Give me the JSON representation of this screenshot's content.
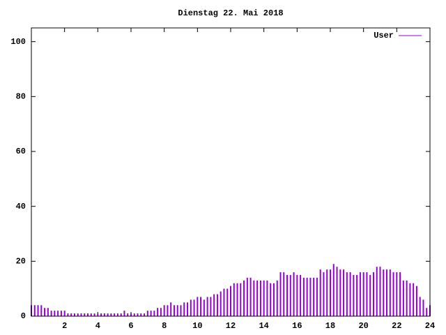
{
  "chart_data": {
    "type": "impulse",
    "title": "Dienstag 22. Mai 2018",
    "series": [
      {
        "name": "User",
        "color": "#9400d3",
        "x": [
          0,
          0.2,
          0.4,
          0.6,
          0.8,
          1,
          1.2,
          1.4,
          1.6,
          1.8,
          2,
          2.2,
          2.4,
          2.6,
          2.8,
          3,
          3.2,
          3.4,
          3.6,
          3.8,
          4,
          4.2,
          4.4,
          4.6,
          4.8,
          5,
          5.2,
          5.4,
          5.6,
          5.8,
          6,
          6.2,
          6.4,
          6.6,
          6.8,
          7,
          7.2,
          7.4,
          7.6,
          7.8,
          8,
          8.2,
          8.4,
          8.6,
          8.8,
          9,
          9.2,
          9.4,
          9.6,
          9.8,
          10,
          10.2,
          10.4,
          10.6,
          10.8,
          11,
          11.2,
          11.4,
          11.6,
          11.8,
          12,
          12.2,
          12.4,
          12.6,
          12.8,
          13,
          13.2,
          13.4,
          13.6,
          13.8,
          14,
          14.2,
          14.4,
          14.6,
          14.8,
          15,
          15.2,
          15.4,
          15.6,
          15.8,
          16,
          16.2,
          16.4,
          16.6,
          16.8,
          17,
          17.2,
          17.4,
          17.6,
          17.8,
          18,
          18.2,
          18.4,
          18.6,
          18.8,
          19,
          19.2,
          19.4,
          19.6,
          19.8,
          20,
          20.2,
          20.4,
          20.6,
          20.8,
          21,
          21.2,
          21.4,
          21.6,
          21.8,
          22,
          22.2,
          22.4,
          22.6,
          22.8,
          23,
          23.2,
          23.4,
          23.6,
          23.8,
          24
        ],
        "values": [
          4,
          4,
          4,
          4,
          3,
          3,
          2,
          2,
          2,
          2,
          2,
          1,
          1,
          1,
          1,
          1,
          1,
          1,
          1,
          1,
          1,
          1,
          1,
          1,
          1,
          1,
          1,
          1,
          2,
          1,
          1,
          1,
          1,
          1,
          1,
          2,
          2,
          2,
          3,
          3,
          4,
          4,
          5,
          4,
          4,
          4,
          5,
          5,
          6,
          6,
          7,
          7,
          6,
          7,
          7,
          8,
          8,
          9,
          10,
          10,
          11,
          12,
          12,
          12,
          13,
          14,
          14,
          13,
          13,
          13,
          13,
          13,
          12,
          12,
          13,
          16,
          16,
          15,
          15,
          16,
          15,
          15,
          14,
          14,
          14,
          14,
          14,
          17,
          16,
          17,
          17,
          19,
          18,
          17,
          17,
          16,
          16,
          15,
          15,
          16,
          16,
          16,
          15,
          16,
          18,
          18,
          17,
          17,
          17,
          16,
          16,
          16,
          13,
          13,
          12,
          12,
          11,
          7,
          6,
          3,
          4
        ]
      }
    ],
    "xlim": [
      0,
      24
    ],
    "xticks": [
      2,
      4,
      6,
      8,
      10,
      12,
      14,
      16,
      18,
      20,
      22,
      24
    ],
    "ylim": [
      0,
      105
    ],
    "yticks": [
      0,
      20,
      40,
      60,
      80,
      100
    ],
    "legend": "top-right"
  }
}
